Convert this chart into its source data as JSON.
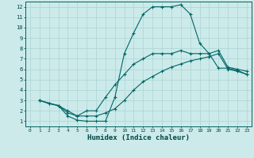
{
  "xlabel": "Humidex (Indice chaleur)",
  "bg_color": "#cceaea",
  "grid_color": "#b0d8d8",
  "line_color": "#006666",
  "xlim": [
    -0.5,
    23.5
  ],
  "ylim": [
    0.5,
    12.5
  ],
  "xticks": [
    0,
    1,
    2,
    3,
    4,
    5,
    6,
    7,
    8,
    9,
    10,
    11,
    12,
    13,
    14,
    15,
    16,
    17,
    18,
    19,
    20,
    21,
    22,
    23
  ],
  "yticks": [
    1,
    2,
    3,
    4,
    5,
    6,
    7,
    8,
    9,
    10,
    11,
    12
  ],
  "curve1_x": [
    1,
    2,
    3,
    4,
    5,
    6,
    7,
    8,
    9,
    10,
    11,
    12,
    13,
    14,
    15,
    16,
    17,
    18,
    19,
    20,
    21,
    22,
    23
  ],
  "curve1_y": [
    3.0,
    2.7,
    2.5,
    1.5,
    1.1,
    1.0,
    1.0,
    1.0,
    3.3,
    7.5,
    9.5,
    11.3,
    12.0,
    12.0,
    12.0,
    12.2,
    11.3,
    8.5,
    7.5,
    6.1,
    6.1,
    5.9,
    5.5
  ],
  "curve2_x": [
    1,
    3,
    4,
    5,
    6,
    7,
    8,
    9,
    10,
    11,
    12,
    13,
    14,
    15,
    16,
    17,
    18,
    19,
    20,
    21,
    22,
    23
  ],
  "curve2_y": [
    3.0,
    2.5,
    1.8,
    1.5,
    2.0,
    2.0,
    3.3,
    4.5,
    5.5,
    6.5,
    7.0,
    7.5,
    7.5,
    7.5,
    7.8,
    7.5,
    7.5,
    7.5,
    7.8,
    6.2,
    6.0,
    5.8
  ],
  "curve3_x": [
    1,
    2,
    3,
    4,
    5,
    6,
    7,
    8,
    9,
    10,
    11,
    12,
    13,
    14,
    15,
    16,
    17,
    18,
    19,
    20,
    21,
    22,
    23
  ],
  "curve3_y": [
    3.0,
    2.7,
    2.5,
    2.0,
    1.5,
    1.5,
    1.5,
    1.8,
    2.2,
    3.0,
    4.0,
    4.8,
    5.3,
    5.8,
    6.2,
    6.5,
    6.8,
    7.0,
    7.2,
    7.5,
    6.0,
    5.8,
    5.5
  ]
}
